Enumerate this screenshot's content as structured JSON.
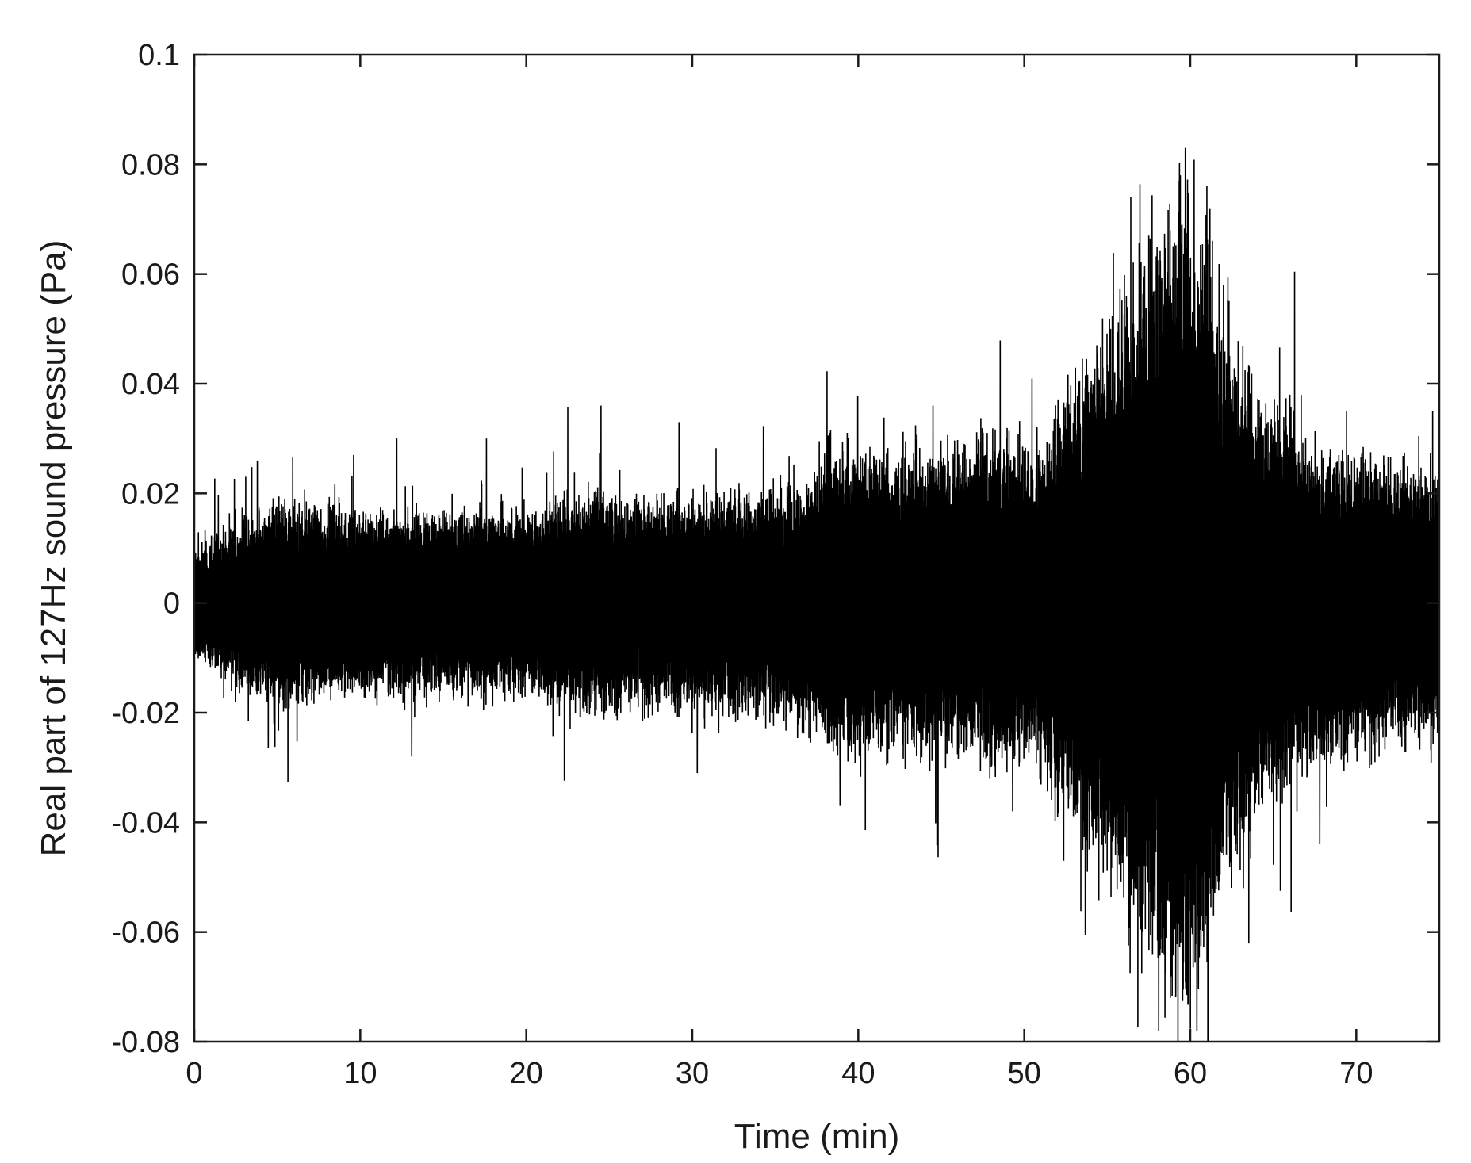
{
  "chart_data": {
    "type": "line",
    "title": "",
    "xlabel": "Time (min)",
    "ylabel": "Real part of 127Hz sound pressure (Pa)",
    "xlim": [
      0,
      75
    ],
    "ylim": [
      -0.08,
      0.1
    ],
    "xticks": [
      0,
      10,
      20,
      30,
      40,
      50,
      60,
      70
    ],
    "xtick_labels": [
      "0",
      "10",
      "20",
      "30",
      "40",
      "50",
      "60",
      "70"
    ],
    "yticks": [
      -0.08,
      -0.06,
      -0.04,
      -0.02,
      0,
      0.02,
      0.04,
      0.06,
      0.08,
      0.1
    ],
    "ytick_labels": [
      "-0.08",
      "-0.06",
      "-0.04",
      "-0.02",
      "0",
      "0.02",
      "0.04",
      "0.06",
      "0.08",
      "0.1"
    ],
    "grid": false,
    "legend": "none",
    "series_color": "#000000",
    "envelope": {
      "time_min": [
        0,
        3,
        5,
        10,
        15,
        20,
        24,
        26,
        30,
        35,
        37.5,
        38.5,
        42,
        45,
        48,
        51,
        52,
        54,
        56,
        58,
        59.5,
        60.5,
        62,
        64,
        66,
        68,
        70,
        72,
        75
      ],
      "amplitude_pa": [
        0.007,
        0.011,
        0.013,
        0.012,
        0.012,
        0.012,
        0.015,
        0.013,
        0.014,
        0.015,
        0.016,
        0.02,
        0.019,
        0.02,
        0.021,
        0.02,
        0.027,
        0.032,
        0.04,
        0.048,
        0.055,
        0.05,
        0.037,
        0.028,
        0.024,
        0.02,
        0.019,
        0.018,
        0.018
      ]
    },
    "spikes": [
      {
        "t": 3.8,
        "v": 0.026
      },
      {
        "t": 4.8,
        "v": -0.022
      },
      {
        "t": 9.6,
        "v": 0.027
      },
      {
        "t": 12.2,
        "v": 0.03
      },
      {
        "t": 13.1,
        "v": -0.028
      },
      {
        "t": 17.6,
        "v": 0.03
      },
      {
        "t": 24.5,
        "v": 0.036
      },
      {
        "t": 29.2,
        "v": 0.033
      },
      {
        "t": 30.3,
        "v": -0.031
      },
      {
        "t": 38.9,
        "v": -0.037
      },
      {
        "t": 44.5,
        "v": 0.036
      },
      {
        "t": 49.3,
        "v": -0.038
      },
      {
        "t": 53.8,
        "v": -0.049
      },
      {
        "t": 55.2,
        "v": 0.05
      },
      {
        "t": 56.2,
        "v": 0.054
      },
      {
        "t": 57.1,
        "v": -0.06
      },
      {
        "t": 57.5,
        "v": 0.067
      },
      {
        "t": 58.1,
        "v": -0.078
      },
      {
        "t": 58.8,
        "v": -0.072
      },
      {
        "t": 59.4,
        "v": 0.078
      },
      {
        "t": 59.7,
        "v": 0.083
      },
      {
        "t": 60.4,
        "v": -0.078
      },
      {
        "t": 61.0,
        "v": 0.076
      },
      {
        "t": 61.4,
        "v": -0.057
      },
      {
        "t": 62.0,
        "v": 0.058
      },
      {
        "t": 63.2,
        "v": -0.052
      },
      {
        "t": 66.0,
        "v": 0.038
      },
      {
        "t": 67.8,
        "v": -0.044
      },
      {
        "t": 74.6,
        "v": 0.035
      }
    ]
  }
}
